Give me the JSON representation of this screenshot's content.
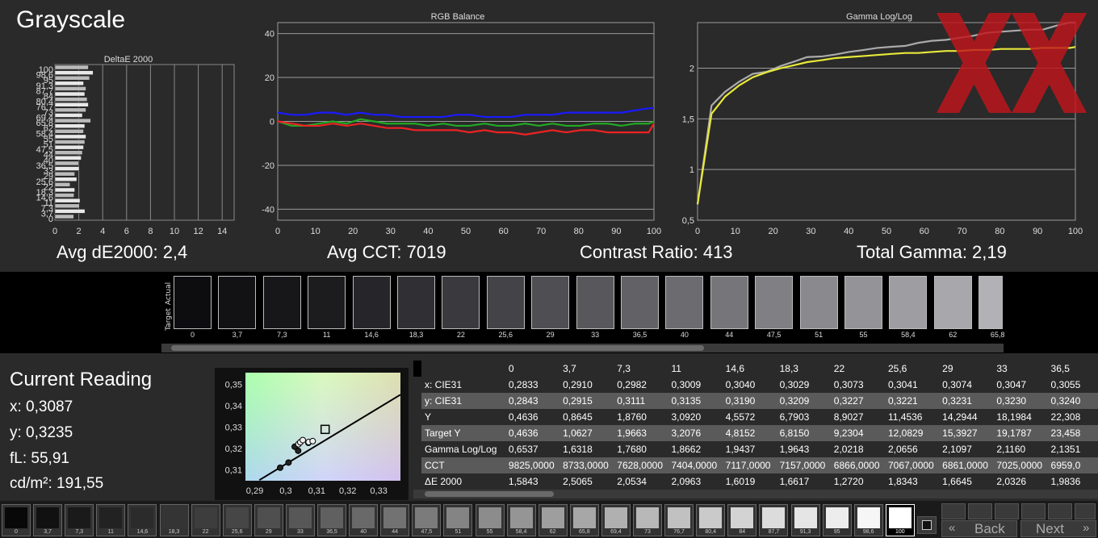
{
  "page": {
    "title": "Grayscale"
  },
  "metrics": {
    "avg_de": "Avg dE2000: 2,4",
    "avg_cct": "Avg CCT: 7019",
    "contrast": "Contrast Ratio: 413",
    "gamma": "Total Gamma: 2,19"
  },
  "chart_data": [
    {
      "type": "bar",
      "title": "DeltaE 2000",
      "orientation": "horizontal",
      "categories": [
        "0",
        "3,7",
        "7,3",
        "11",
        "14,6",
        "18,3",
        "22",
        "25,6",
        "29",
        "33",
        "36,5",
        "40",
        "44",
        "47,5",
        "51",
        "55",
        "58,4",
        "62",
        "65,8",
        "69,4",
        "73",
        "76,7",
        "80,4",
        "84",
        "87,7",
        "91,3",
        "95",
        "98,6",
        "100"
      ],
      "values": [
        1.58,
        2.51,
        2.05,
        2.1,
        1.6,
        1.66,
        1.27,
        1.83,
        1.66,
        2.03,
        1.98,
        2.2,
        2.3,
        2.4,
        2.5,
        2.6,
        2.4,
        2.5,
        3.0,
        2.3,
        2.6,
        2.8,
        2.7,
        2.5,
        2.6,
        2.4,
        2.9,
        3.2,
        2.8
      ],
      "tick_labels_y": [
        "100",
        "98,6",
        "95",
        "91,3",
        "87,7",
        "84",
        "80,4",
        "76,7",
        "73",
        "69,4",
        "65,8",
        "62",
        "58,4",
        "55",
        "51",
        "47,5",
        "44",
        "40",
        "36,5",
        "33",
        "29",
        "25,6",
        "22",
        "18,3",
        "14,6",
        "11",
        "7,3",
        "3,7",
        "0"
      ],
      "xticks": [
        "0",
        "2",
        "4",
        "6",
        "8",
        "10",
        "12",
        "14"
      ],
      "xlim": [
        0,
        15
      ]
    },
    {
      "type": "line",
      "title": "RGB Balance",
      "x": [
        0,
        3.7,
        7.3,
        11,
        14.6,
        18.3,
        22,
        25.6,
        29,
        33,
        36.5,
        40,
        44,
        47.5,
        51,
        55,
        58.4,
        62,
        65.8,
        69.4,
        73,
        76.7,
        80.4,
        84,
        87.7,
        91.3,
        95,
        98.6,
        100
      ],
      "series": [
        {
          "color": "#1a1aff",
          "values": [
            4,
            3,
            3,
            4,
            4,
            3,
            4,
            3,
            3,
            2,
            2,
            2,
            2,
            3,
            3,
            2,
            2,
            2,
            3,
            3,
            3,
            4,
            4,
            4,
            4,
            4,
            5,
            6,
            6
          ]
        },
        {
          "color": "#22aa22",
          "values": [
            0,
            -2,
            -2,
            -1,
            0,
            -1,
            1,
            0,
            -1,
            -1,
            -1,
            -2,
            -1,
            -2,
            -2,
            -1,
            -2,
            -2,
            -1,
            -2,
            -1,
            -2,
            -2,
            -1,
            -1,
            -2,
            -1,
            -1,
            0
          ]
        },
        {
          "color": "#ee2222",
          "values": [
            0,
            -1,
            -2,
            -2,
            -1,
            -2,
            -1,
            -2,
            -3,
            -3,
            -4,
            -4,
            -4,
            -4,
            -5,
            -4,
            -5,
            -5,
            -6,
            -5,
            -4,
            -5,
            -4,
            -4,
            -5,
            -5,
            -5,
            -5,
            -1
          ]
        }
      ],
      "ylim": [
        -45,
        45
      ],
      "yticks": [
        "40",
        "20",
        "0",
        "-20",
        "-40"
      ],
      "xticks": [
        "0",
        "10",
        "20",
        "30",
        "40",
        "50",
        "60",
        "70",
        "80",
        "90",
        "100"
      ],
      "xlim": [
        0,
        100
      ]
    },
    {
      "type": "line",
      "title": "Gamma Log/Log",
      "x": [
        0,
        3.7,
        7.3,
        11,
        14.6,
        18.3,
        22,
        25.6,
        29,
        33,
        36.5,
        40,
        44,
        47.5,
        51,
        55,
        58.4,
        62,
        65.8,
        69.4,
        73,
        76.7,
        80.4,
        84,
        87.7,
        91.3,
        95,
        98.6,
        100
      ],
      "series": [
        {
          "color": "#aaaaaa",
          "values": [
            0.6537,
            1.6318,
            1.768,
            1.8662,
            1.9437,
            1.9643,
            2.0218,
            2.0656,
            2.1097,
            2.116,
            2.1351,
            2.16,
            2.18,
            2.2,
            2.21,
            2.22,
            2.25,
            2.27,
            2.28,
            2.3,
            2.32,
            2.35,
            2.36,
            2.37,
            2.38,
            2.38,
            2.42,
            2.45,
            2.45
          ]
        },
        {
          "color": "#e8e83a",
          "values": [
            0.66,
            1.55,
            1.72,
            1.83,
            1.91,
            1.96,
            2.0,
            2.03,
            2.06,
            2.08,
            2.1,
            2.11,
            2.12,
            2.13,
            2.14,
            2.15,
            2.15,
            2.16,
            2.17,
            2.17,
            2.18,
            2.18,
            2.19,
            2.19,
            2.19,
            2.2,
            2.2,
            2.2,
            2.21
          ]
        }
      ],
      "ylim": [
        0.5,
        2.45
      ],
      "yticks": [
        "2",
        "1,5",
        "1",
        "0,5"
      ],
      "xticks": [
        "0",
        "10",
        "20",
        "30",
        "40",
        "50",
        "60",
        "70",
        "80",
        "90",
        "100"
      ],
      "xlim": [
        0,
        100
      ]
    },
    {
      "type": "scatter",
      "title": "",
      "xticks": [
        "0,29",
        "0,3",
        "0,31",
        "0,32",
        "0,33"
      ],
      "yticks": [
        "0,35",
        "0,34",
        "0,33",
        "0,32",
        "0,31"
      ],
      "xlim": [
        0.287,
        0.337
      ],
      "ylim": [
        0.305,
        0.3555
      ],
      "points_x": [
        0.2833,
        0.291,
        0.2982,
        0.3009,
        0.304,
        0.3029,
        0.3073,
        0.3041,
        0.3074,
        0.3047,
        0.3055,
        0.3087
      ],
      "points_y": [
        0.2843,
        0.2915,
        0.3111,
        0.3135,
        0.319,
        0.3209,
        0.3227,
        0.3221,
        0.3231,
        0.323,
        0.324,
        0.3235
      ],
      "target": [
        0.3127,
        0.329
      ]
    }
  ],
  "strip": {
    "side_labels": [
      "Actual",
      "Target"
    ],
    "labels": [
      "0",
      "3,7",
      "7,3",
      "11",
      "14,6",
      "18,3",
      "22",
      "25,6",
      "29",
      "33",
      "36,5",
      "40",
      "44",
      "47,5",
      "51",
      "55",
      "58,4",
      "62",
      "65,8"
    ],
    "colors": [
      "#0d0d10",
      "#121214",
      "#17171a",
      "#1c1c1f",
      "#26262a",
      "#303034",
      "#3a3a3e",
      "#444448",
      "#4f4f53",
      "#58585c",
      "#626266",
      "#6c6c70",
      "#76767a",
      "#808084",
      "#8a8a8e",
      "#949498",
      "#9e9ea2",
      "#a8a8ac",
      "#b2b2b6"
    ]
  },
  "reading": {
    "title": "Current Reading",
    "x": "x: 0,3087",
    "y": "y: 0,3235",
    "fl": "fL: 55,91",
    "cdm": "cd/m²: 191,55"
  },
  "table": {
    "headers": [
      "0",
      "3,7",
      "7,3",
      "11",
      "14,6",
      "18,3",
      "22",
      "25,6",
      "29",
      "33",
      "36,5"
    ],
    "rows": [
      {
        "label": "x: CIE31",
        "values": [
          "0,2833",
          "0,2910",
          "0,2982",
          "0,3009",
          "0,3040",
          "0,3029",
          "0,3073",
          "0,3041",
          "0,3074",
          "0,3047",
          "0,3055"
        ]
      },
      {
        "label": "y: CIE31",
        "values": [
          "0,2843",
          "0,2915",
          "0,3111",
          "0,3135",
          "0,3190",
          "0,3209",
          "0,3227",
          "0,3221",
          "0,3231",
          "0,3230",
          "0,3240"
        ]
      },
      {
        "label": "Y",
        "values": [
          "0,4636",
          "0,8645",
          "1,8760",
          "3,0920",
          "4,5572",
          "6,7903",
          "8,9027",
          "11,4536",
          "14,2944",
          "18,1984",
          "22,308"
        ]
      },
      {
        "label": "Target Y",
        "values": [
          "0,4636",
          "1,0627",
          "1,9663",
          "3,2076",
          "4,8152",
          "6,8150",
          "9,2304",
          "12,0829",
          "15,3927",
          "19,1787",
          "23,458"
        ]
      },
      {
        "label": "Gamma Log/Log",
        "values": [
          "0,6537",
          "1,6318",
          "1,7680",
          "1,8662",
          "1,9437",
          "1,9643",
          "2,0218",
          "2,0656",
          "2,1097",
          "2,1160",
          "2,1351"
        ]
      },
      {
        "label": "CCT",
        "values": [
          "9825,0000",
          "8733,0000",
          "7628,0000",
          "7404,0000",
          "7117,0000",
          "7157,0000",
          "6866,0000",
          "7067,0000",
          "6861,0000",
          "7025,0000",
          "6959,0"
        ]
      },
      {
        "label": "ΔE 2000",
        "values": [
          "1,5843",
          "2,5065",
          "2,0534",
          "2,0963",
          "1,6019",
          "1,6617",
          "1,2720",
          "1,8343",
          "1,6645",
          "2,0326",
          "1,9836"
        ]
      }
    ]
  },
  "bottom": {
    "labels": [
      "0",
      "3,7",
      "7,3",
      "11",
      "14,6",
      "18,3",
      "22",
      "25,6",
      "29",
      "33",
      "36,5",
      "40",
      "44",
      "47,5",
      "51",
      "55",
      "58,4",
      "62",
      "65,8",
      "69,4",
      "73",
      "76,7",
      "80,4",
      "84",
      "87,7",
      "91,3",
      "95",
      "98,6",
      "100"
    ],
    "back": "Back",
    "next": "Next"
  }
}
